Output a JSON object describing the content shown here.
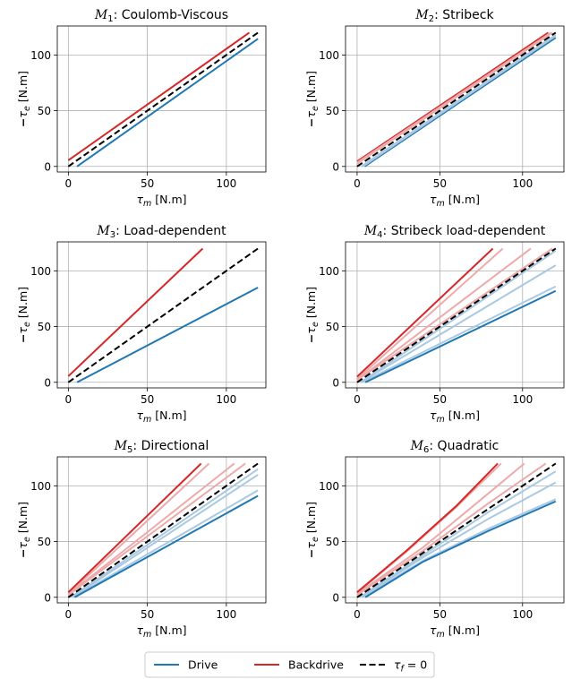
{
  "colors": {
    "drive": "#1f77b4",
    "backdrive": "#d62728",
    "ideal": "#000000",
    "grid": "#b0b0b0",
    "drive_light": "#a9c9e2",
    "backdrive_light": "#eeaaaa"
  },
  "chart_data": [
    {
      "type": "line",
      "title": "M1: Coulomb-Viscous",
      "title_math": "M",
      "title_sub": "1",
      "title_rest": ": Coulomb-Viscous",
      "xlabel": "τm [N.m]",
      "ylabel": "−τe [N.m]",
      "xlim": [
        -7,
        125
      ],
      "ylim": [
        -5,
        126
      ],
      "xticks": [
        "0",
        "50",
        "100"
      ],
      "yticks": [
        "0",
        "50",
        "100"
      ],
      "grid": true,
      "series": [
        {
          "role": "drive",
          "x": [
            5.5,
            120
          ],
          "y": [
            0,
            114.5
          ]
        },
        {
          "role": "backdrive",
          "x": [
            0,
            114.5
          ],
          "y": [
            5.5,
            120
          ]
        },
        {
          "role": "ideal",
          "x": [
            0,
            120
          ],
          "y": [
            0,
            120
          ]
        }
      ]
    },
    {
      "type": "line",
      "title": "M2: Stribeck",
      "title_math": "M",
      "title_sub": "2",
      "title_rest": ": Stribeck",
      "xlabel": "τm [N.m]",
      "ylabel": "−τe [N.m]",
      "xlim": [
        -7,
        125
      ],
      "ylim": [
        -5,
        126
      ],
      "xticks": [
        "0",
        "50",
        "100"
      ],
      "yticks": [
        "0",
        "50",
        "100"
      ],
      "grid": true,
      "series": [
        {
          "role": "drive",
          "x": [
            4.5,
            120
          ],
          "y": [
            0,
            115.5
          ]
        },
        {
          "role": "backdrive",
          "x": [
            0,
            115.5
          ],
          "y": [
            4.5,
            120
          ]
        },
        {
          "role": "drive_light",
          "x": [
            3.5,
            120
          ],
          "y": [
            0,
            117
          ]
        },
        {
          "role": "backdrive_light",
          "x": [
            0,
            117
          ],
          "y": [
            3.5,
            120
          ]
        },
        {
          "role": "drive_light",
          "x": [
            2.5,
            120
          ],
          "y": [
            0,
            118
          ]
        },
        {
          "role": "backdrive_light",
          "x": [
            0,
            118
          ],
          "y": [
            2.5,
            120
          ]
        },
        {
          "role": "ideal",
          "x": [
            0,
            120
          ],
          "y": [
            0,
            120
          ]
        }
      ]
    },
    {
      "type": "line",
      "title": "M3: Load-dependent",
      "title_math": "M",
      "title_sub": "3",
      "title_rest": ": Load-dependent",
      "xlabel": "τm [N.m]",
      "ylabel": "−τe [N.m]",
      "xlim": [
        -7,
        125
      ],
      "ylim": [
        -5,
        126
      ],
      "xticks": [
        "0",
        "50",
        "100"
      ],
      "yticks": [
        "0",
        "50",
        "100"
      ],
      "grid": true,
      "series": [
        {
          "role": "drive",
          "x": [
            5.5,
            120
          ],
          "y": [
            0,
            85
          ]
        },
        {
          "role": "backdrive",
          "x": [
            0,
            85
          ],
          "y": [
            5.5,
            120
          ]
        },
        {
          "role": "ideal",
          "x": [
            0,
            120
          ],
          "y": [
            0,
            120
          ]
        }
      ]
    },
    {
      "type": "line",
      "title": "M4: Stribeck load-dependent",
      "title_math": "M",
      "title_sub": "4",
      "title_rest": ": Stribeck load-dependent",
      "xlabel": "τm [N.m]",
      "ylabel": "−τe [N.m]",
      "xlim": [
        -7,
        125
      ],
      "ylim": [
        -5,
        126
      ],
      "xticks": [
        "0",
        "50",
        "100"
      ],
      "yticks": [
        "0",
        "50",
        "100"
      ],
      "grid": true,
      "series": [
        {
          "role": "drive_light",
          "x": [
            2,
            120
          ],
          "y": [
            0,
            118
          ]
        },
        {
          "role": "drive_light",
          "x": [
            2,
            120
          ],
          "y": [
            0,
            105
          ]
        },
        {
          "role": "drive_light",
          "x": [
            3,
            120
          ],
          "y": [
            0,
            86
          ]
        },
        {
          "role": "backdrive_light",
          "x": [
            0,
            118
          ],
          "y": [
            2,
            120
          ]
        },
        {
          "role": "backdrive_light",
          "x": [
            0,
            105
          ],
          "y": [
            2,
            120
          ]
        },
        {
          "role": "backdrive_light",
          "x": [
            0,
            88
          ],
          "y": [
            3,
            120
          ]
        },
        {
          "role": "drive",
          "x": [
            5,
            120
          ],
          "y": [
            0,
            82
          ]
        },
        {
          "role": "backdrive",
          "x": [
            0,
            82
          ],
          "y": [
            5,
            120
          ]
        },
        {
          "role": "ideal",
          "x": [
            0,
            120
          ],
          "y": [
            0,
            120
          ]
        }
      ]
    },
    {
      "type": "line",
      "title": "M5: Directional",
      "title_math": "M",
      "title_sub": "5",
      "title_rest": ": Directional",
      "xlabel": "τm [N.m]",
      "ylabel": "−τe [N.m]",
      "xlim": [
        -7,
        125
      ],
      "ylim": [
        -5,
        126
      ],
      "xticks": [
        "0",
        "50",
        "100"
      ],
      "yticks": [
        "0",
        "50",
        "100"
      ],
      "grid": true,
      "series": [
        {
          "role": "drive_light",
          "x": [
            1.5,
            120
          ],
          "y": [
            0,
            115
          ]
        },
        {
          "role": "drive_light",
          "x": [
            2.5,
            120
          ],
          "y": [
            0,
            110
          ]
        },
        {
          "role": "drive_light",
          "x": [
            3,
            120
          ],
          "y": [
            0,
            96
          ]
        },
        {
          "role": "backdrive_light",
          "x": [
            0,
            112
          ],
          "y": [
            2,
            120
          ]
        },
        {
          "role": "backdrive_light",
          "x": [
            0,
            105
          ],
          "y": [
            2.5,
            120
          ]
        },
        {
          "role": "backdrive_light",
          "x": [
            0,
            89
          ],
          "y": [
            3,
            120
          ]
        },
        {
          "role": "drive",
          "x": [
            4,
            120
          ],
          "y": [
            0,
            91
          ]
        },
        {
          "role": "backdrive",
          "x": [
            0,
            84
          ],
          "y": [
            4.5,
            120
          ]
        },
        {
          "role": "ideal",
          "x": [
            0,
            120
          ],
          "y": [
            0,
            120
          ]
        }
      ]
    },
    {
      "type": "line",
      "title": "M6: Quadratic",
      "title_math": "M",
      "title_sub": "6",
      "title_rest": ": Quadratic",
      "xlabel": "τm [N.m]",
      "ylabel": "−τe [N.m]",
      "xlim": [
        -7,
        125
      ],
      "ylim": [
        -5,
        126
      ],
      "xticks": [
        "0",
        "50",
        "100"
      ],
      "yticks": [
        "0",
        "50",
        "100"
      ],
      "grid": true,
      "series": [
        {
          "role": "drive_light",
          "x": [
            1.5,
            40,
            80,
            120
          ],
          "y": [
            0,
            38,
            77,
            113
          ]
        },
        {
          "role": "drive_light",
          "x": [
            2.5,
            40,
            80,
            120
          ],
          "y": [
            0,
            36,
            71,
            103
          ]
        },
        {
          "role": "drive_light",
          "x": [
            3.5,
            40,
            80,
            120
          ],
          "y": [
            0,
            33,
            62,
            88
          ]
        },
        {
          "role": "backdrive_light",
          "x": [
            0,
            40,
            80,
            114
          ],
          "y": [
            2,
            42,
            85,
            120
          ]
        },
        {
          "role": "backdrive_light",
          "x": [
            0,
            40,
            80,
            101
          ],
          "y": [
            3,
            45,
            94,
            120
          ]
        },
        {
          "role": "backdrive_light",
          "x": [
            0,
            30,
            60,
            87
          ],
          "y": [
            4,
            41,
            81,
            120
          ]
        },
        {
          "role": "drive",
          "x": [
            5,
            40,
            80,
            120
          ],
          "y": [
            0,
            32,
            60,
            86
          ]
        },
        {
          "role": "backdrive",
          "x": [
            0,
            30,
            60,
            85
          ],
          "y": [
            4.5,
            42,
            82,
            120
          ]
        },
        {
          "role": "ideal",
          "x": [
            0,
            120
          ],
          "y": [
            0,
            120
          ]
        }
      ]
    }
  ],
  "legend": {
    "placement": "bottom-center",
    "items": [
      {
        "role": "drive",
        "label": "Drive",
        "style": "solid"
      },
      {
        "role": "backdrive",
        "label": "Backdrive",
        "style": "solid"
      },
      {
        "role": "ideal",
        "label": "τf = 0",
        "label_math": "τ",
        "label_sub": "f",
        "label_rest": " = 0",
        "style": "dashed"
      }
    ]
  }
}
